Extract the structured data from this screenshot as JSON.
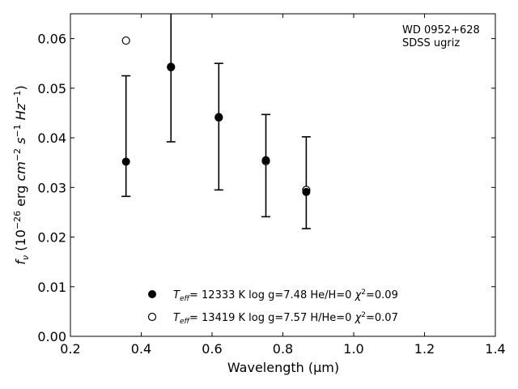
{
  "chart_data": {
    "type": "scatter",
    "title": "",
    "xlabel": "Wavelength (μm)",
    "ylabel": "f_ν (10^-26 erg cm^-2 s^-1 Hz^-1)",
    "xlim": [
      0.2,
      1.4
    ],
    "ylim": [
      0.0,
      0.065
    ],
    "xticks": [
      "0.2",
      "0.4",
      "0.6",
      "0.8",
      "1.0",
      "1.2",
      "1.4"
    ],
    "yticks": [
      "0.00",
      "0.01",
      "0.02",
      "0.03",
      "0.04",
      "0.05",
      "0.06"
    ],
    "grid": false,
    "annotation": [
      "WD 0952+628",
      "SDSS ugriz"
    ],
    "observed": {
      "x": [
        0.357,
        0.484,
        0.619,
        0.752,
        0.866
      ],
      "y": [
        0.0352,
        0.0542,
        0.0442,
        0.0355,
        0.0291
      ],
      "yerr_low": [
        0.0282,
        0.0392,
        0.0295,
        0.0241,
        0.0217
      ],
      "yerr_high": [
        0.0525,
        0.0655,
        0.055,
        0.0447,
        0.0402
      ]
    },
    "series": [
      {
        "name": "T_eff= 12333 K  log g=7.48  He/H=0  χ²=0.09",
        "marker": "filled-circle",
        "values": [
          0.0352,
          0.0542,
          0.0442,
          0.0355,
          0.0291
        ]
      },
      {
        "name": "T_eff= 13419 K  log g=7.57  H/He=0  χ²=0.07",
        "marker": "open-circle",
        "values": [
          0.0596,
          0.0543,
          0.0441,
          0.0353,
          0.0295
        ]
      }
    ]
  }
}
